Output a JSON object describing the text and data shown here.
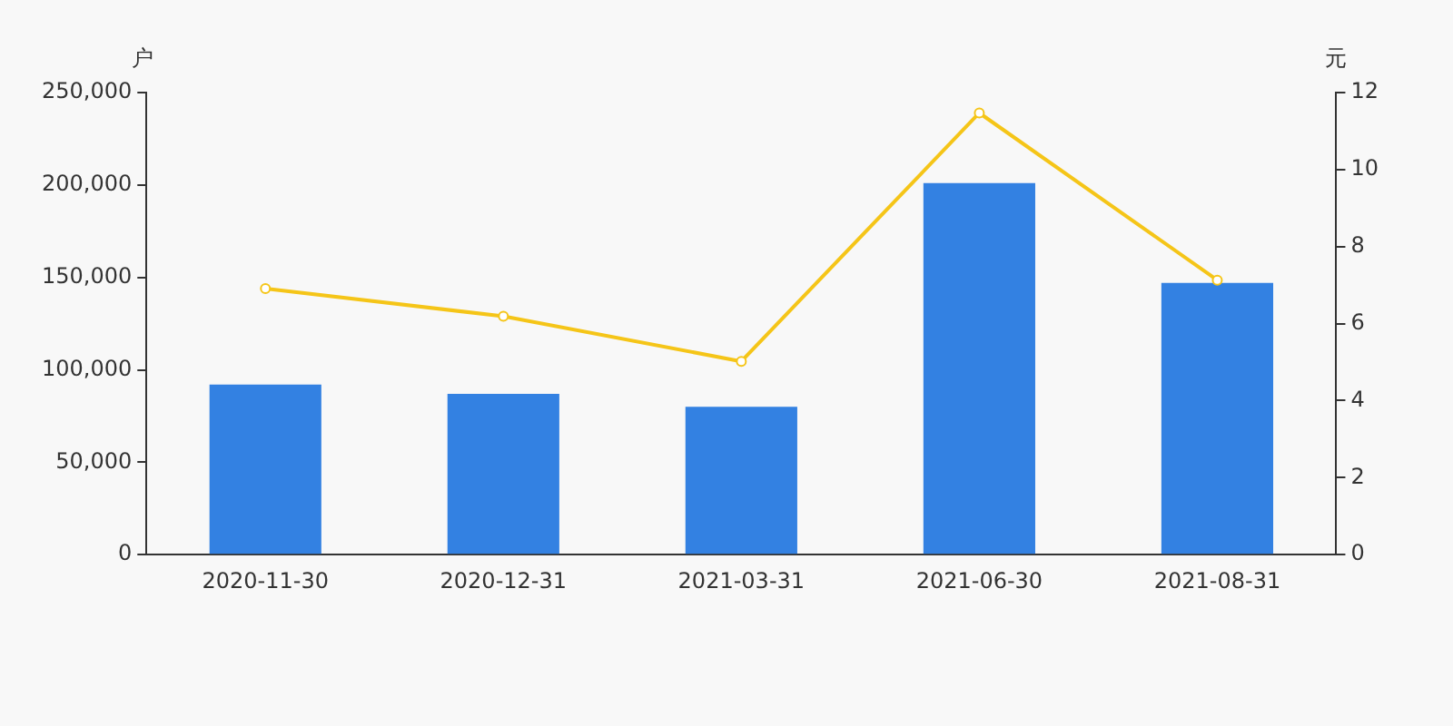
{
  "chart_data": {
    "type": "bar",
    "ylabel": "户",
    "y2label": "元",
    "categories": [
      "2020-11-30",
      "2020-12-31",
      "2021-03-31",
      "2021-06-30",
      "2021-08-31"
    ],
    "series": [
      {
        "color": "#3381e2",
        "values": [
          92000,
          87000,
          80000,
          201000,
          147000
        ]
      },
      {
        "type": "line",
        "axis": "y2",
        "color": "#f5c518",
        "marker": "circle",
        "values": [
          6.91,
          6.19,
          5.02,
          11.47,
          7.13
        ]
      }
    ],
    "ylim": [
      0,
      250000
    ],
    "yticks": [
      {
        "value": 0,
        "label": "0"
      },
      {
        "value": 50000,
        "label": "50,000"
      },
      {
        "value": 100000,
        "label": "100,000"
      },
      {
        "value": 150000,
        "label": "150,000"
      },
      {
        "value": 200000,
        "label": "200,000"
      },
      {
        "value": 250000,
        "label": "250,000"
      }
    ],
    "y2lim": [
      0,
      12
    ],
    "y2ticks": [
      0,
      2,
      4,
      6,
      8,
      10,
      12
    ],
    "grid": false,
    "legend": false
  }
}
